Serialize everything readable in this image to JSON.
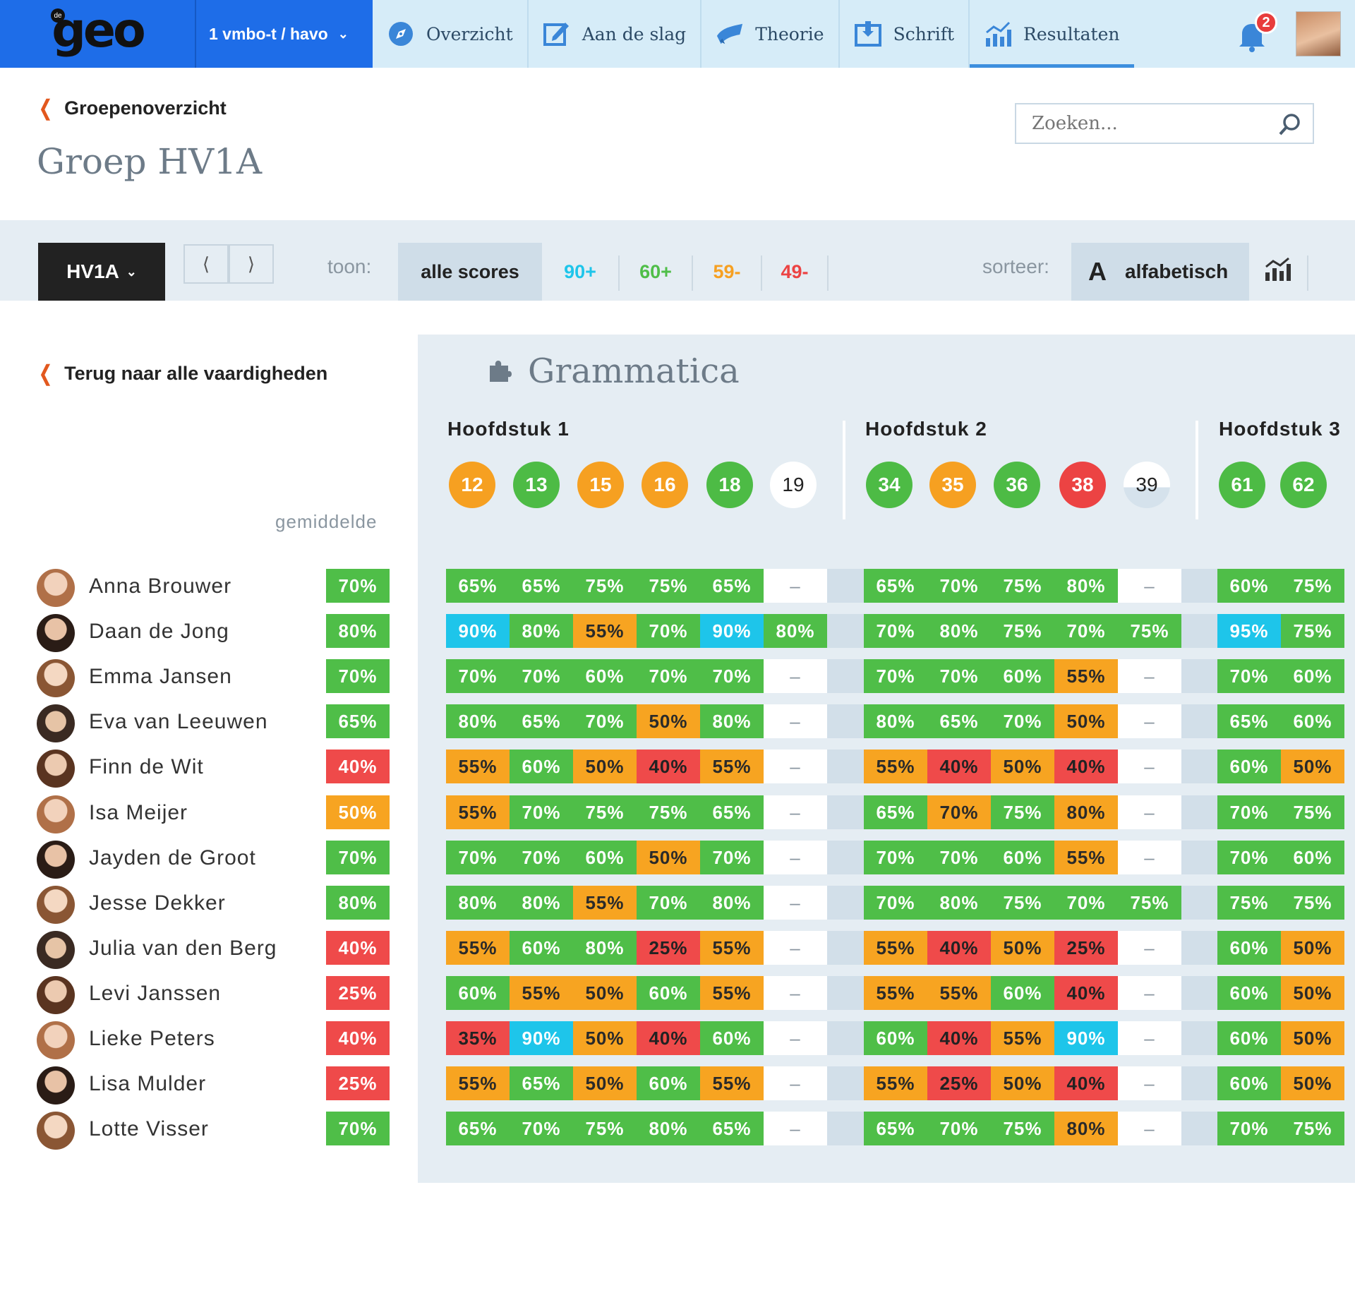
{
  "app": {
    "logo_text": "geo",
    "logo_small": "de",
    "grade_select": "1 vmbo-t / havo"
  },
  "nav": [
    {
      "label": "Overzicht",
      "icon": "compass-icon"
    },
    {
      "label": "Aan de slag",
      "icon": "edit-icon"
    },
    {
      "label": "Theorie",
      "icon": "theory-icon"
    },
    {
      "label": "Schrift",
      "icon": "notebook-icon"
    },
    {
      "label": "Resultaten",
      "icon": "results-chart-icon",
      "active": true
    }
  ],
  "notifications": {
    "count": "2"
  },
  "header": {
    "back_label": "Groepenoverzicht",
    "title": "Groep HV1A",
    "search_placeholder": "Zoeken..."
  },
  "toolbar": {
    "group": "HV1A",
    "pager_prev": "⟨",
    "pager_next": "⟩",
    "show_label": "toon:",
    "filters": [
      {
        "label": "alle scores",
        "color": "#222222",
        "selected": true
      },
      {
        "label": "90+",
        "color": "#1ec5ea"
      },
      {
        "label": "60+",
        "color": "#4fbe48"
      },
      {
        "label": "59-",
        "color": "#f6a021"
      },
      {
        "label": "49-",
        "color": "#ec4343"
      }
    ],
    "sort_label": "sorteer:",
    "sort_value": "alfabetisch",
    "sort_icon_letter": "A"
  },
  "left": {
    "back_label": "Terug naar alle vaardigheden",
    "average_label": "gemiddelde"
  },
  "skill": {
    "title": "Grammatica"
  },
  "colors": {
    "green": "#4fbe48",
    "orange": "#f7a421",
    "red": "#ef4a4a",
    "blue": "#1ec5ea",
    "brand_blue": "#1e6de8"
  },
  "chapters": [
    {
      "title": "Hoofdstuk 1",
      "lessons": [
        {
          "n": "12",
          "status": "orange"
        },
        {
          "n": "13",
          "status": "green"
        },
        {
          "n": "15",
          "status": "orange"
        },
        {
          "n": "16",
          "status": "orange"
        },
        {
          "n": "18",
          "status": "green"
        },
        {
          "n": "19",
          "status": "white"
        }
      ]
    },
    {
      "title": "Hoofdstuk 2",
      "lessons": [
        {
          "n": "34",
          "status": "green"
        },
        {
          "n": "35",
          "status": "orange"
        },
        {
          "n": "36",
          "status": "green"
        },
        {
          "n": "38",
          "status": "red"
        },
        {
          "n": "39",
          "status": "split"
        }
      ]
    },
    {
      "title": "Hoofdstuk 3",
      "lessons": [
        {
          "n": "61",
          "status": "green"
        },
        {
          "n": "62",
          "status": "green"
        }
      ]
    }
  ],
  "students": [
    {
      "name": "Anna Brouwer",
      "avg": "70%",
      "avg_c": "green",
      "scores": [
        [
          [
            "65%",
            "green"
          ],
          [
            "65%",
            "green"
          ],
          [
            "75%",
            "green"
          ],
          [
            "75%",
            "green"
          ],
          [
            "65%",
            "green"
          ],
          [
            "–",
            "white"
          ]
        ],
        [
          [
            "65%",
            "green"
          ],
          [
            "70%",
            "green"
          ],
          [
            "75%",
            "green"
          ],
          [
            "80%",
            "green"
          ],
          [
            "–",
            "white"
          ]
        ],
        [
          [
            "60%",
            "green"
          ],
          [
            "75%",
            "green"
          ]
        ]
      ]
    },
    {
      "name": "Daan de Jong",
      "avg": "80%",
      "avg_c": "green",
      "scores": [
        [
          [
            "90%",
            "blue"
          ],
          [
            "80%",
            "green"
          ],
          [
            "55%",
            "orange"
          ],
          [
            "70%",
            "green"
          ],
          [
            "90%",
            "blue"
          ],
          [
            "80%",
            "green"
          ]
        ],
        [
          [
            "70%",
            "green"
          ],
          [
            "80%",
            "green"
          ],
          [
            "75%",
            "green"
          ],
          [
            "70%",
            "green"
          ],
          [
            "75%",
            "green"
          ]
        ],
        [
          [
            "95%",
            "blue"
          ],
          [
            "75%",
            "green"
          ]
        ]
      ]
    },
    {
      "name": "Emma Jansen",
      "avg": "70%",
      "avg_c": "green",
      "scores": [
        [
          [
            "70%",
            "green"
          ],
          [
            "70%",
            "green"
          ],
          [
            "60%",
            "green"
          ],
          [
            "70%",
            "green"
          ],
          [
            "70%",
            "green"
          ],
          [
            "–",
            "white"
          ]
        ],
        [
          [
            "70%",
            "green"
          ],
          [
            "70%",
            "green"
          ],
          [
            "60%",
            "green"
          ],
          [
            "55%",
            "orange"
          ],
          [
            "–",
            "white"
          ]
        ],
        [
          [
            "70%",
            "green"
          ],
          [
            "60%",
            "green"
          ]
        ]
      ]
    },
    {
      "name": "Eva van Leeuwen",
      "avg": "65%",
      "avg_c": "green",
      "scores": [
        [
          [
            "80%",
            "green"
          ],
          [
            "65%",
            "green"
          ],
          [
            "70%",
            "green"
          ],
          [
            "50%",
            "orange"
          ],
          [
            "80%",
            "green"
          ],
          [
            "–",
            "white"
          ]
        ],
        [
          [
            "80%",
            "green"
          ],
          [
            "65%",
            "green"
          ],
          [
            "70%",
            "green"
          ],
          [
            "50%",
            "orange"
          ],
          [
            "–",
            "white"
          ]
        ],
        [
          [
            "65%",
            "green"
          ],
          [
            "60%",
            "green"
          ]
        ]
      ]
    },
    {
      "name": "Finn de Wit",
      "avg": "40%",
      "avg_c": "red",
      "scores": [
        [
          [
            "55%",
            "orange"
          ],
          [
            "60%",
            "green"
          ],
          [
            "50%",
            "orange"
          ],
          [
            "40%",
            "red"
          ],
          [
            "55%",
            "orange"
          ],
          [
            "–",
            "white"
          ]
        ],
        [
          [
            "55%",
            "orange"
          ],
          [
            "40%",
            "red"
          ],
          [
            "50%",
            "orange"
          ],
          [
            "40%",
            "red"
          ],
          [
            "–",
            "white"
          ]
        ],
        [
          [
            "60%",
            "green"
          ],
          [
            "50%",
            "orange"
          ]
        ]
      ]
    },
    {
      "name": "Isa Meijer",
      "avg": "50%",
      "avg_c": "orange",
      "scores": [
        [
          [
            "55%",
            "orange"
          ],
          [
            "70%",
            "green"
          ],
          [
            "75%",
            "green"
          ],
          [
            "75%",
            "green"
          ],
          [
            "65%",
            "green"
          ],
          [
            "–",
            "white"
          ]
        ],
        [
          [
            "65%",
            "green"
          ],
          [
            "70%",
            "orange"
          ],
          [
            "75%",
            "green"
          ],
          [
            "80%",
            "orange"
          ],
          [
            "–",
            "white"
          ]
        ],
        [
          [
            "70%",
            "green"
          ],
          [
            "75%",
            "green"
          ]
        ]
      ]
    },
    {
      "name": "Jayden de Groot",
      "avg": "70%",
      "avg_c": "green",
      "scores": [
        [
          [
            "70%",
            "green"
          ],
          [
            "70%",
            "green"
          ],
          [
            "60%",
            "green"
          ],
          [
            "50%",
            "orange"
          ],
          [
            "70%",
            "green"
          ],
          [
            "–",
            "white"
          ]
        ],
        [
          [
            "70%",
            "green"
          ],
          [
            "70%",
            "green"
          ],
          [
            "60%",
            "green"
          ],
          [
            "55%",
            "orange"
          ],
          [
            "–",
            "white"
          ]
        ],
        [
          [
            "70%",
            "green"
          ],
          [
            "60%",
            "green"
          ]
        ]
      ]
    },
    {
      "name": "Jesse Dekker",
      "avg": "80%",
      "avg_c": "green",
      "scores": [
        [
          [
            "80%",
            "green"
          ],
          [
            "80%",
            "green"
          ],
          [
            "55%",
            "orange"
          ],
          [
            "70%",
            "green"
          ],
          [
            "80%",
            "green"
          ],
          [
            "–",
            "white"
          ]
        ],
        [
          [
            "70%",
            "green"
          ],
          [
            "80%",
            "green"
          ],
          [
            "75%",
            "green"
          ],
          [
            "70%",
            "green"
          ],
          [
            "75%",
            "green"
          ]
        ],
        [
          [
            "75%",
            "green"
          ],
          [
            "75%",
            "green"
          ]
        ]
      ]
    },
    {
      "name": "Julia van den Berg",
      "avg": "40%",
      "avg_c": "red",
      "scores": [
        [
          [
            "55%",
            "orange"
          ],
          [
            "60%",
            "green"
          ],
          [
            "80%",
            "green"
          ],
          [
            "25%",
            "red"
          ],
          [
            "55%",
            "orange"
          ],
          [
            "–",
            "white"
          ]
        ],
        [
          [
            "55%",
            "orange"
          ],
          [
            "40%",
            "red"
          ],
          [
            "50%",
            "orange"
          ],
          [
            "25%",
            "red"
          ],
          [
            "–",
            "white"
          ]
        ],
        [
          [
            "60%",
            "green"
          ],
          [
            "50%",
            "orange"
          ]
        ]
      ]
    },
    {
      "name": "Levi Janssen",
      "avg": "25%",
      "avg_c": "red",
      "scores": [
        [
          [
            "60%",
            "green"
          ],
          [
            "55%",
            "orange"
          ],
          [
            "50%",
            "orange"
          ],
          [
            "60%",
            "green"
          ],
          [
            "55%",
            "orange"
          ],
          [
            "–",
            "white"
          ]
        ],
        [
          [
            "55%",
            "orange"
          ],
          [
            "55%",
            "orange"
          ],
          [
            "60%",
            "green"
          ],
          [
            "40%",
            "red"
          ],
          [
            "–",
            "white"
          ]
        ],
        [
          [
            "60%",
            "green"
          ],
          [
            "50%",
            "orange"
          ]
        ]
      ]
    },
    {
      "name": "Lieke Peters",
      "avg": "40%",
      "avg_c": "red",
      "scores": [
        [
          [
            "35%",
            "red"
          ],
          [
            "90%",
            "blue"
          ],
          [
            "50%",
            "orange"
          ],
          [
            "40%",
            "red"
          ],
          [
            "60%",
            "green"
          ],
          [
            "–",
            "white"
          ]
        ],
        [
          [
            "60%",
            "green"
          ],
          [
            "40%",
            "red"
          ],
          [
            "55%",
            "orange"
          ],
          [
            "90%",
            "blue"
          ],
          [
            "–",
            "white"
          ]
        ],
        [
          [
            "60%",
            "green"
          ],
          [
            "50%",
            "orange"
          ]
        ]
      ]
    },
    {
      "name": "Lisa Mulder",
      "avg": "25%",
      "avg_c": "red",
      "scores": [
        [
          [
            "55%",
            "orange"
          ],
          [
            "65%",
            "green"
          ],
          [
            "50%",
            "orange"
          ],
          [
            "60%",
            "green"
          ],
          [
            "55%",
            "orange"
          ],
          [
            "–",
            "white"
          ]
        ],
        [
          [
            "55%",
            "orange"
          ],
          [
            "25%",
            "red"
          ],
          [
            "50%",
            "orange"
          ],
          [
            "40%",
            "red"
          ],
          [
            "–",
            "white"
          ]
        ],
        [
          [
            "60%",
            "green"
          ],
          [
            "50%",
            "orange"
          ]
        ]
      ]
    },
    {
      "name": "Lotte Visser",
      "avg": "70%",
      "avg_c": "green",
      "scores": [
        [
          [
            "65%",
            "green"
          ],
          [
            "70%",
            "green"
          ],
          [
            "75%",
            "green"
          ],
          [
            "80%",
            "green"
          ],
          [
            "65%",
            "green"
          ],
          [
            "–",
            "white"
          ]
        ],
        [
          [
            "65%",
            "green"
          ],
          [
            "70%",
            "green"
          ],
          [
            "75%",
            "green"
          ],
          [
            "80%",
            "orange"
          ],
          [
            "–",
            "white"
          ]
        ],
        [
          [
            "70%",
            "green"
          ],
          [
            "75%",
            "green"
          ]
        ]
      ]
    }
  ]
}
